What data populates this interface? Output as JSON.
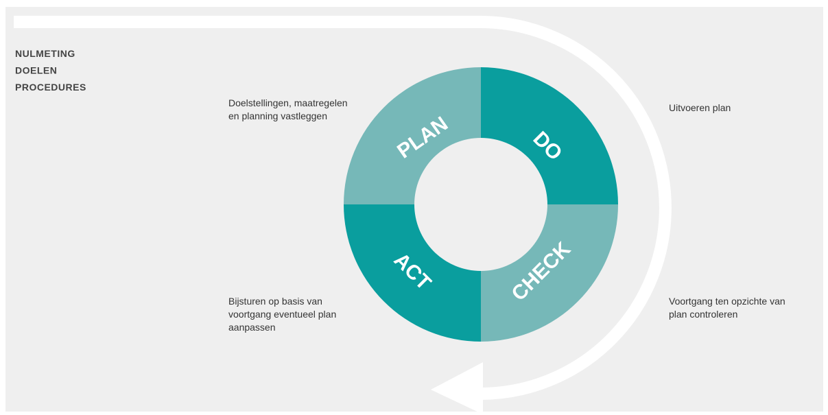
{
  "header": {
    "lines": [
      "NULMETING",
      "DOELEN",
      "PROCEDURES"
    ]
  },
  "phases": [
    {
      "label": "PLAN",
      "description": [
        "Doelstellingen, maatregelen",
        "en planning vastleggen"
      ]
    },
    {
      "label": "DO",
      "description": [
        "Uitvoeren plan"
      ]
    },
    {
      "label": "CHECK",
      "description": [
        "Voortgang ten opzichte van",
        "plan controleren"
      ]
    },
    {
      "label": "ACT",
      "description": [
        "Bijsturen op basis van",
        "voortgang eventueel plan",
        "aanpassen"
      ]
    }
  ]
}
